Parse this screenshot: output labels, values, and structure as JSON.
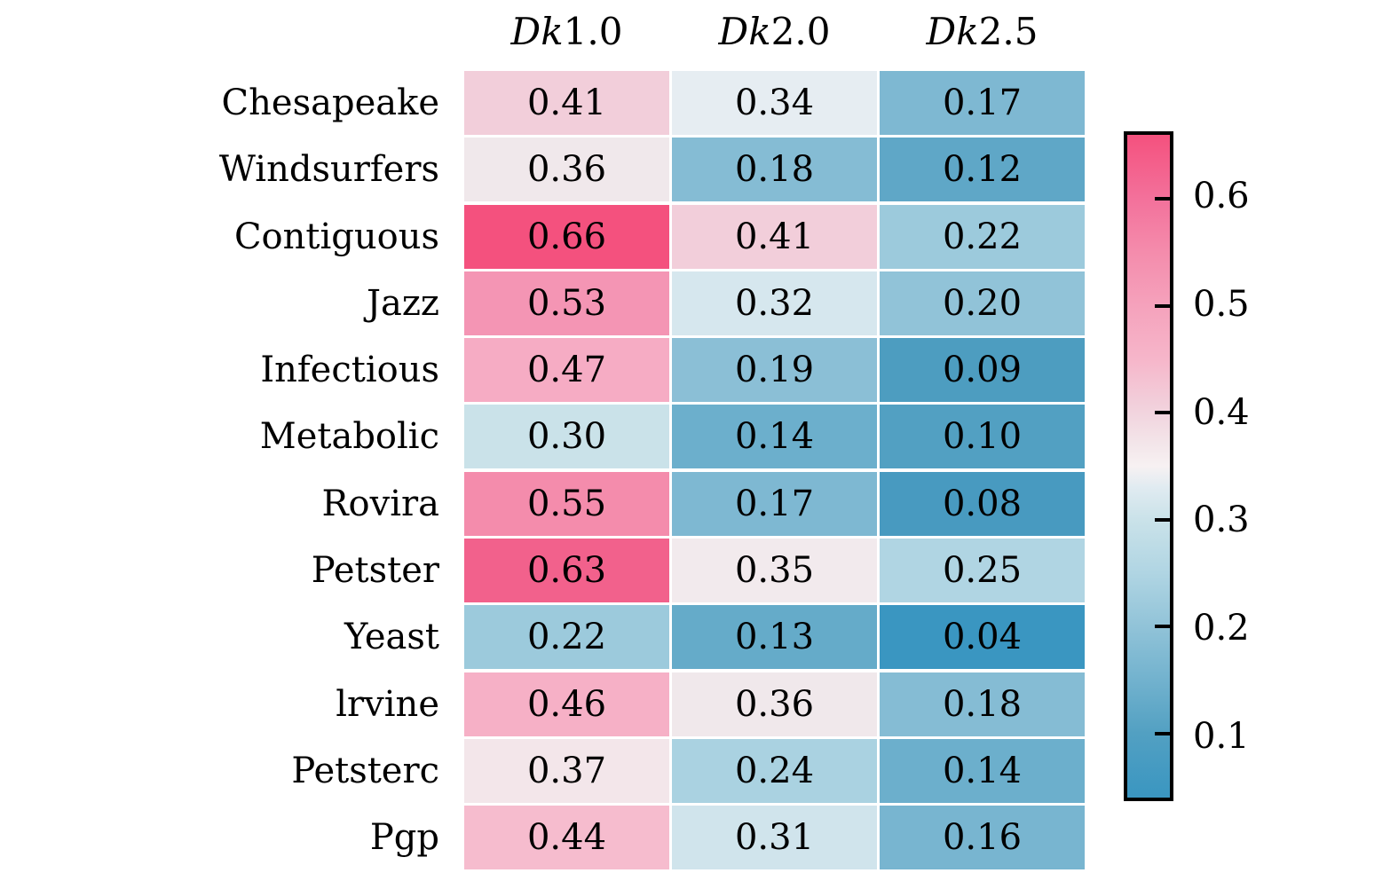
{
  "figure": {
    "background": "#ffffff",
    "text_color": "#000000"
  },
  "chart_data": {
    "type": "heatmap",
    "title": "",
    "xlabel": "",
    "ylabel": "",
    "columns": [
      {
        "label": "Dk1.0",
        "italic_part": "Dk",
        "number_part": "1.0"
      },
      {
        "label": "Dk2.0",
        "italic_part": "Dk",
        "number_part": "2.0"
      },
      {
        "label": "Dk2.5",
        "italic_part": "Dk",
        "number_part": "2.5"
      }
    ],
    "rows": [
      "Chesapeake",
      "Windsurfers",
      "Contiguous",
      "Jazz",
      "Infectious",
      "Metabolic",
      "Rovira",
      "Petster",
      "Yeast",
      "lrvine",
      "Petsterc",
      "Pgp"
    ],
    "values": [
      [
        0.41,
        0.34,
        0.17
      ],
      [
        0.36,
        0.18,
        0.12
      ],
      [
        0.66,
        0.41,
        0.22
      ],
      [
        0.53,
        0.32,
        0.2
      ],
      [
        0.47,
        0.19,
        0.09
      ],
      [
        0.3,
        0.14,
        0.1
      ],
      [
        0.55,
        0.17,
        0.08
      ],
      [
        0.63,
        0.35,
        0.25
      ],
      [
        0.22,
        0.13,
        0.04
      ],
      [
        0.46,
        0.36,
        0.18
      ],
      [
        0.37,
        0.24,
        0.14
      ],
      [
        0.44,
        0.31,
        0.16
      ]
    ],
    "cell_colors": [
      [
        "#F2CEDA",
        "#E6EDF2",
        "#7EB8D2"
      ],
      [
        "#F0E8EB",
        "#85BCD4",
        "#5FA7C7"
      ],
      [
        "#F4517E",
        "#F2CEDA",
        "#9CCADC"
      ],
      [
        "#F495B4",
        "#D6E7EE",
        "#91C3D8"
      ],
      [
        "#F6ACC4",
        "#8BBFD6",
        "#4D9DC0"
      ],
      [
        "#CAE2E9",
        "#6CAFCC",
        "#52A0C2"
      ],
      [
        "#F48CAC",
        "#7EB8D2",
        "#489AC0"
      ],
      [
        "#F2618C",
        "#F2EAED",
        "#B0D5E3"
      ],
      [
        "#9CCADC",
        "#65ABC9",
        "#3A96C1"
      ],
      [
        "#F6B0C6",
        "#F0E8EB",
        "#85BCD4"
      ],
      [
        "#F3E6EA",
        "#AAD2E1",
        "#6CAFCC"
      ],
      [
        "#F6BCCE",
        "#D0E4EC",
        "#78B5D0"
      ]
    ],
    "value_decimals": 2,
    "legend_position": "right",
    "colorbar": {
      "vmin": 0.04,
      "vmax": 0.66,
      "center": 0.35,
      "tick_values": [
        0.6,
        0.5,
        0.4,
        0.3,
        0.2,
        0.1
      ],
      "tick_labels": [
        "0.6",
        "0.5",
        "0.4",
        "0.3",
        "0.2",
        "0.1"
      ],
      "border_color": "#000000",
      "gradient_stops": [
        {
          "v": 0.66,
          "color": "#F4517E"
        },
        {
          "v": 0.6,
          "color": "#F3719B"
        },
        {
          "v": 0.55,
          "color": "#F48CAC"
        },
        {
          "v": 0.5,
          "color": "#F5A2BC"
        },
        {
          "v": 0.45,
          "color": "#F6B6CA"
        },
        {
          "v": 0.41,
          "color": "#F2CEDA"
        },
        {
          "v": 0.37,
          "color": "#F3E6EA"
        },
        {
          "v": 0.35,
          "color": "#F7F1F2"
        },
        {
          "v": 0.33,
          "color": "#E0EBF1"
        },
        {
          "v": 0.3,
          "color": "#CAE2E9"
        },
        {
          "v": 0.25,
          "color": "#B0D5E3"
        },
        {
          "v": 0.2,
          "color": "#91C3D8"
        },
        {
          "v": 0.15,
          "color": "#72B2CE"
        },
        {
          "v": 0.1,
          "color": "#52A0C2"
        },
        {
          "v": 0.04,
          "color": "#3A96C1"
        }
      ]
    }
  }
}
